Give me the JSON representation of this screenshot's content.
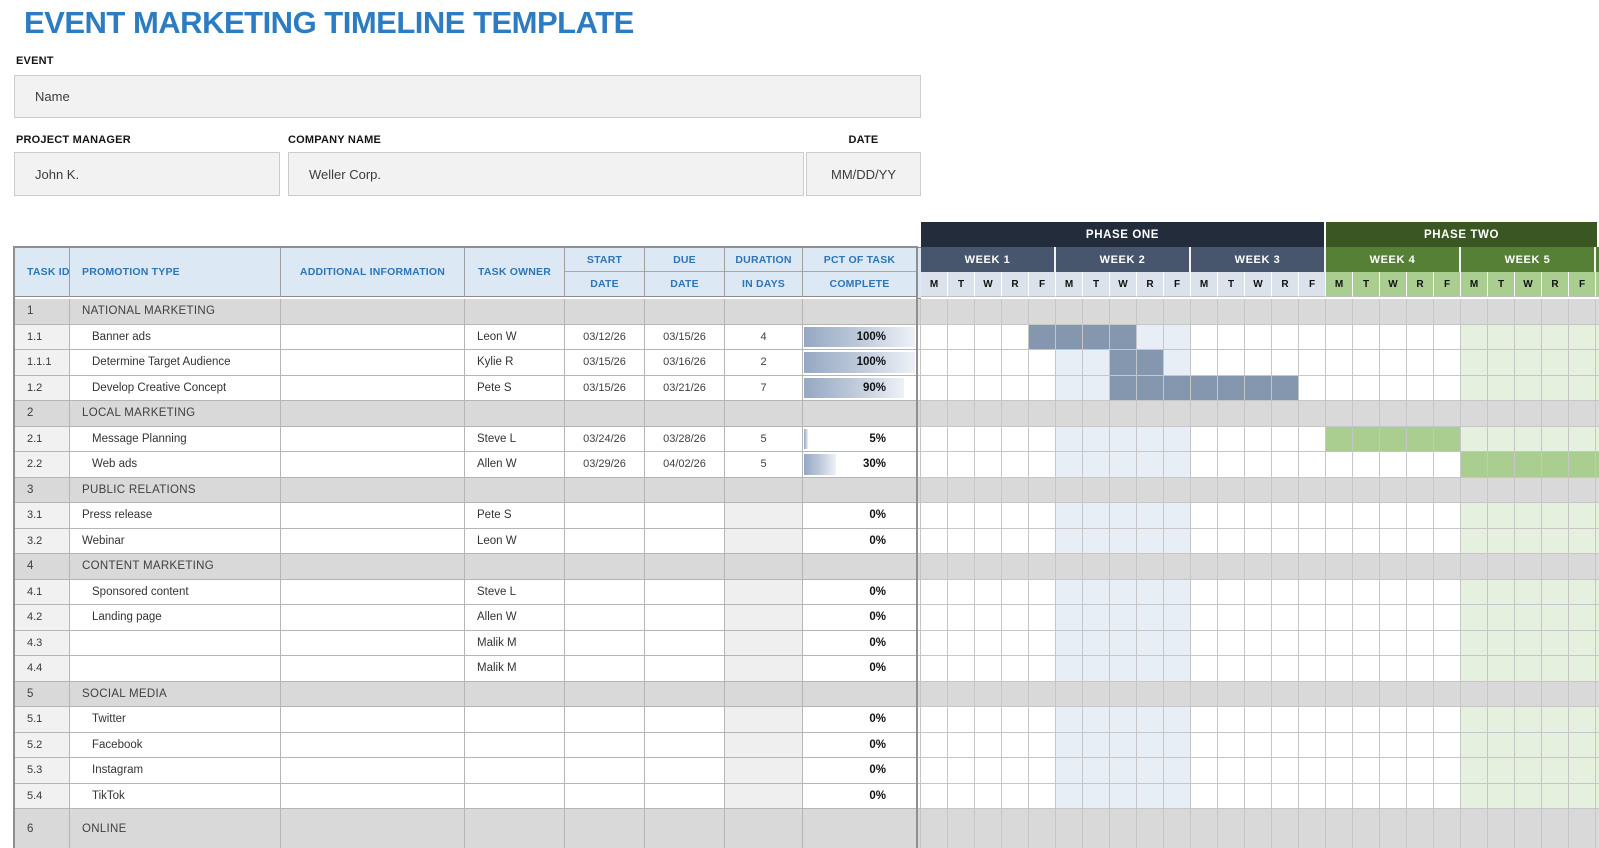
{
  "title": "EVENT MARKETING TIMELINE TEMPLATE",
  "form": {
    "event_label": "EVENT",
    "event_value": "Name",
    "pm_label": "PROJECT MANAGER",
    "pm_value": "John K.",
    "company_label": "COMPANY NAME",
    "company_value": "Weller Corp.",
    "date_label": "DATE",
    "date_value": "MM/DD/YY"
  },
  "table": {
    "headers": {
      "task_id": "TASK ID",
      "promotion_type": "PROMOTION TYPE",
      "additional_info": "ADDITIONAL INFORMATION",
      "task_owner": "TASK OWNER",
      "start_top": "START",
      "start_bottom": "DATE",
      "due_top": "DUE",
      "due_bottom": "DATE",
      "duration_top": "DURATION",
      "duration_bottom": "IN DAYS",
      "pct_top": "PCT OF TASK",
      "pct_bottom": "COMPLETE"
    },
    "rows": [
      {
        "id": "1",
        "name": "NATIONAL MARKETING",
        "type": "section",
        "owner": "",
        "start": "",
        "due": "",
        "duration": "",
        "pct": null,
        "pct_label": "",
        "indent": false,
        "cells": "sssssssssssssssssssssssss"
      },
      {
        "id": "1.1",
        "name": "Banner ads",
        "type": "task",
        "owner": "Leon W",
        "start": "03/12/26",
        "due": "03/15/26",
        "duration": "4",
        "pct": 100,
        "pct_label": "100%",
        "indent": true,
        "cells": "....bbbbll..........ttttt"
      },
      {
        "id": "1.1.1",
        "name": "Determine Target Audience",
        "type": "task",
        "owner": "Kylie R",
        "start": "03/15/26",
        "due": "03/16/26",
        "duration": "2",
        "pct": 100,
        "pct_label": "100%",
        "indent": true,
        "cells": ".....llbbl..........ttttt"
      },
      {
        "id": "1.2",
        "name": "Develop Creative Concept",
        "type": "task",
        "owner": "Pete S",
        "start": "03/15/26",
        "due": "03/21/26",
        "duration": "7",
        "pct": 90,
        "pct_label": "90%",
        "indent": true,
        "cells": ".....llbbbbbbb......ttttt"
      },
      {
        "id": "2",
        "name": "LOCAL MARKETING",
        "type": "section",
        "owner": "",
        "start": "",
        "due": "",
        "duration": "",
        "pct": null,
        "pct_label": "",
        "indent": false,
        "cells": "sssssssssssssssssssssssss"
      },
      {
        "id": "2.1",
        "name": "Message Planning",
        "type": "task",
        "owner": "Steve L",
        "start": "03/24/26",
        "due": "03/28/26",
        "duration": "5",
        "pct": 5,
        "pct_label": "5%",
        "indent": true,
        "cells": ".....lllll.....gggggttttt"
      },
      {
        "id": "2.2",
        "name": "Web ads",
        "type": "task",
        "owner": "Allen W",
        "start": "03/29/26",
        "due": "04/02/26",
        "duration": "5",
        "pct": 30,
        "pct_label": "30%",
        "indent": true,
        "cells": ".....lllll..........ggggg"
      },
      {
        "id": "3",
        "name": "PUBLIC RELATIONS",
        "type": "section",
        "owner": "",
        "start": "",
        "due": "",
        "duration": "",
        "pct": null,
        "pct_label": "",
        "indent": false,
        "cells": "sssssssssssssssssssssssss"
      },
      {
        "id": "3.1",
        "name": "Press release",
        "type": "task",
        "owner": "Pete S",
        "start": "",
        "due": "",
        "duration": "",
        "pct": 0,
        "pct_label": "0%",
        "indent": false,
        "cells": ".....lllll..........ttttt"
      },
      {
        "id": "3.2",
        "name": "Webinar",
        "type": "task",
        "owner": "Leon W",
        "start": "",
        "due": "",
        "duration": "",
        "pct": 0,
        "pct_label": "0%",
        "indent": false,
        "cells": ".....lllll..........ttttt"
      },
      {
        "id": "4",
        "name": "CONTENT MARKETING",
        "type": "section",
        "owner": "",
        "start": "",
        "due": "",
        "duration": "",
        "pct": null,
        "pct_label": "",
        "indent": false,
        "cells": "sssssssssssssssssssssssss"
      },
      {
        "id": "4.1",
        "name": "Sponsored content",
        "type": "task",
        "owner": "Steve L",
        "start": "",
        "due": "",
        "duration": "",
        "pct": 0,
        "pct_label": "0%",
        "indent": true,
        "cells": ".....lllll..........ttttt"
      },
      {
        "id": "4.2",
        "name": "Landing page",
        "type": "task",
        "owner": "Allen W",
        "start": "",
        "due": "",
        "duration": "",
        "pct": 0,
        "pct_label": "0%",
        "indent": true,
        "cells": ".....lllll..........ttttt"
      },
      {
        "id": "4.3",
        "name": "",
        "type": "task",
        "owner": "Malik M",
        "start": "",
        "due": "",
        "duration": "",
        "pct": 0,
        "pct_label": "0%",
        "indent": true,
        "cells": ".....lllll..........ttttt"
      },
      {
        "id": "4.4",
        "name": "",
        "type": "task",
        "owner": "Malik M",
        "start": "",
        "due": "",
        "duration": "",
        "pct": 0,
        "pct_label": "0%",
        "indent": true,
        "cells": ".....lllll..........ttttt"
      },
      {
        "id": "5",
        "name": "SOCIAL MEDIA",
        "type": "section",
        "owner": "",
        "start": "",
        "due": "",
        "duration": "",
        "pct": null,
        "pct_label": "",
        "indent": false,
        "cells": "sssssssssssssssssssssssss"
      },
      {
        "id": "5.1",
        "name": "Twitter",
        "type": "task",
        "owner": "",
        "start": "",
        "due": "",
        "duration": "",
        "pct": 0,
        "pct_label": "0%",
        "indent": true,
        "cells": ".....lllll..........ttttt"
      },
      {
        "id": "5.2",
        "name": "Facebook",
        "type": "task",
        "owner": "",
        "start": "",
        "due": "",
        "duration": "",
        "pct": 0,
        "pct_label": "0%",
        "indent": true,
        "cells": ".....lllll..........ttttt"
      },
      {
        "id": "5.3",
        "name": "Instagram",
        "type": "task",
        "owner": "",
        "start": "",
        "due": "",
        "duration": "",
        "pct": 0,
        "pct_label": "0%",
        "indent": true,
        "cells": ".....lllll..........ttttt"
      },
      {
        "id": "5.4",
        "name": "TikTok",
        "type": "task",
        "owner": "",
        "start": "",
        "due": "",
        "duration": "",
        "pct": 0,
        "pct_label": "0%",
        "indent": true,
        "cells": ".....lllll..........ttttt"
      },
      {
        "id": "6",
        "name": "ONLINE",
        "type": "section",
        "owner": "",
        "start": "",
        "due": "",
        "duration": "",
        "pct": null,
        "pct_label": "",
        "indent": false,
        "cells": "sssssssssssssssssssssssss"
      }
    ]
  },
  "gantt": {
    "phases": [
      {
        "label": "PHASE ONE",
        "weeks": 3,
        "color": "#232C3B"
      },
      {
        "label": "PHASE TWO",
        "weeks": 2,
        "color": "#3A5623"
      }
    ],
    "weeks": [
      "WEEK 1",
      "WEEK 2",
      "WEEK 3",
      "WEEK 4",
      "WEEK 5"
    ],
    "days": [
      "M",
      "T",
      "W",
      "R",
      "F"
    ],
    "colors": {
      "week_header_blue": "#47566C",
      "week_header_green": "#568036",
      "day_header_blue": "#DBE2EC",
      "day_header_green": "#A9CE90",
      "bar_dark_blue": "#8497AE",
      "tint_blue": "#E8EEF5",
      "bar_green": "#A9CE90",
      "tint_green": "#E6F0DE",
      "section_gray": "#D9D9D9",
      "accent_blue": "#2E75B6"
    }
  }
}
